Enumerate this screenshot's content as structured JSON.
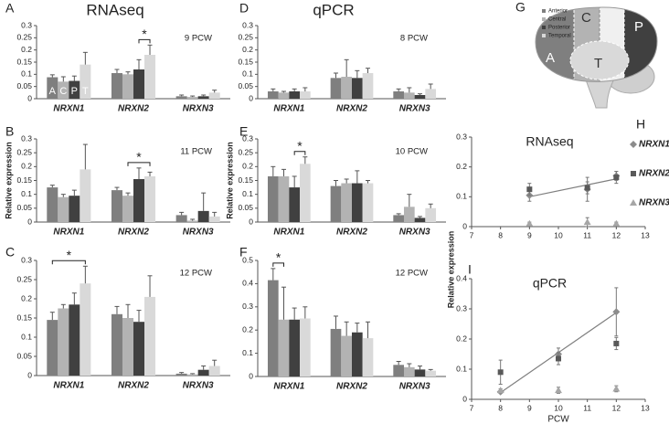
{
  "chart_data": [
    {
      "type": "bar",
      "panel": "A",
      "title": "RNAseq",
      "label": "9 PCW",
      "categories": [
        "NRXN1",
        "NRXN2",
        "NRXN3"
      ],
      "bar_labels": [
        "A",
        "C",
        "P",
        "T"
      ],
      "ylim": [
        0,
        0.3
      ],
      "yticks": [
        0,
        0.05,
        0.1,
        0.15,
        0.2,
        0.25,
        0.3
      ],
      "series": [
        {
          "color": "#7f7f7f",
          "values": [
            0.088,
            0.105,
            0.01
          ],
          "errors": [
            0.01,
            0.015,
            0.005
          ]
        },
        {
          "color": "#b3b3b3",
          "values": [
            0.07,
            0.1,
            0.007
          ],
          "errors": [
            0.02,
            0.01,
            0.004
          ]
        },
        {
          "color": "#404040",
          "values": [
            0.073,
            0.12,
            0.01
          ],
          "errors": [
            0.02,
            0.04,
            0.005
          ]
        },
        {
          "color": "#d9d9d9",
          "values": [
            0.14,
            0.18,
            0.025
          ],
          "errors": [
            0.05,
            0.04,
            0.01
          ]
        }
      ],
      "significance": {
        "label": "*",
        "category": "NRXN2",
        "between": [
          "Posterior",
          "Temporal"
        ]
      }
    },
    {
      "type": "bar",
      "panel": "B",
      "label": "11 PCW",
      "ylabel": "Relative expression",
      "categories": [
        "NRXN1",
        "NRXN2",
        "NRXN3"
      ],
      "ylim": [
        0,
        0.3
      ],
      "yticks": [
        0,
        0.05,
        0.1,
        0.15,
        0.2,
        0.25,
        0.3
      ],
      "series": [
        {
          "color": "#7f7f7f",
          "values": [
            0.125,
            0.115,
            0.025
          ],
          "errors": [
            0.008,
            0.01,
            0.01
          ]
        },
        {
          "color": "#b3b3b3",
          "values": [
            0.09,
            0.095,
            0.005
          ],
          "errors": [
            0.01,
            0.01,
            0.005
          ]
        },
        {
          "color": "#404040",
          "values": [
            0.095,
            0.155,
            0.04
          ],
          "errors": [
            0.02,
            0.04,
            0.065
          ]
        },
        {
          "color": "#d9d9d9",
          "values": [
            0.19,
            0.165,
            0.02
          ],
          "errors": [
            0.09,
            0.015,
            0.015
          ]
        }
      ],
      "significance": {
        "label": "*",
        "category": "NRXN2",
        "between": [
          "Central",
          "Temporal"
        ]
      }
    },
    {
      "type": "bar",
      "panel": "C",
      "label": "12 PCW",
      "categories": [
        "NRXN1",
        "NRXN2",
        "NRXN3"
      ],
      "ylim": [
        0,
        0.3
      ],
      "yticks": [
        0,
        0.05,
        0.1,
        0.15,
        0.2,
        0.25,
        0.3
      ],
      "series": [
        {
          "color": "#7f7f7f",
          "values": [
            0.145,
            0.16,
            0.005
          ],
          "errors": [
            0.02,
            0.02,
            0.003
          ]
        },
        {
          "color": "#b3b3b3",
          "values": [
            0.175,
            0.15,
            0.003
          ],
          "errors": [
            0.01,
            0.035,
            0.002
          ]
        },
        {
          "color": "#404040",
          "values": [
            0.185,
            0.14,
            0.015
          ],
          "errors": [
            0.03,
            0.03,
            0.01
          ]
        },
        {
          "color": "#d9d9d9",
          "values": [
            0.24,
            0.205,
            0.025
          ],
          "errors": [
            0.045,
            0.055,
            0.015
          ]
        }
      ],
      "significance": {
        "label": "*",
        "category": "NRXN1",
        "between": [
          "Anterior",
          "Temporal"
        ]
      }
    },
    {
      "type": "bar",
      "panel": "D",
      "title": "qPCR",
      "label": "8 PCW",
      "categories": [
        "NRXN1",
        "NRXN2",
        "NRXN3"
      ],
      "ylim": [
        0,
        0.3
      ],
      "yticks": [
        0,
        0.05,
        0.1,
        0.15,
        0.2,
        0.25,
        0.3
      ],
      "series": [
        {
          "color": "#7f7f7f",
          "values": [
            0.03,
            0.085,
            0.03
          ],
          "errors": [
            0.01,
            0.02,
            0.01
          ]
        },
        {
          "color": "#b3b3b3",
          "values": [
            0.025,
            0.09,
            0.025
          ],
          "errors": [
            0.005,
            0.07,
            0.02
          ]
        },
        {
          "color": "#404040",
          "values": [
            0.03,
            0.085,
            0.015
          ],
          "errors": [
            0.01,
            0.03,
            0.005
          ]
        },
        {
          "color": "#d9d9d9",
          "values": [
            0.03,
            0.105,
            0.04
          ],
          "errors": [
            0.015,
            0.02,
            0.02
          ]
        }
      ]
    },
    {
      "type": "bar",
      "panel": "E",
      "label": "10 PCW",
      "ylabel": "Relative expression",
      "categories": [
        "NRXN1",
        "NRXN2",
        "NRXN3"
      ],
      "ylim": [
        0,
        0.3
      ],
      "yticks": [
        0,
        0.05,
        0.1,
        0.15,
        0.2,
        0.25,
        0.3
      ],
      "series": [
        {
          "color": "#7f7f7f",
          "values": [
            0.165,
            0.13,
            0.025
          ],
          "errors": [
            0.035,
            0.02,
            0.005
          ]
        },
        {
          "color": "#b3b3b3",
          "values": [
            0.165,
            0.14,
            0.055
          ],
          "errors": [
            0.025,
            0.015,
            0.045
          ]
        },
        {
          "color": "#404040",
          "values": [
            0.125,
            0.14,
            0.015
          ],
          "errors": [
            0.04,
            0.045,
            0.005
          ]
        },
        {
          "color": "#d9d9d9",
          "values": [
            0.21,
            0.14,
            0.05
          ],
          "errors": [
            0.025,
            0.01,
            0.015
          ]
        }
      ],
      "significance": {
        "label": "*",
        "category": "NRXN1",
        "between": [
          "Posterior",
          "Temporal"
        ]
      }
    },
    {
      "type": "bar",
      "panel": "F",
      "label": "12 PCW",
      "categories": [
        "NRXN1",
        "NRXN2",
        "NRXN3"
      ],
      "ylim": [
        0,
        0.5
      ],
      "yticks": [
        0,
        0.1,
        0.2,
        0.3,
        0.4,
        0.5
      ],
      "series": [
        {
          "color": "#7f7f7f",
          "values": [
            0.415,
            0.205,
            0.05
          ],
          "errors": [
            0.05,
            0.055,
            0.015
          ]
        },
        {
          "color": "#b3b3b3",
          "values": [
            0.245,
            0.175,
            0.04
          ],
          "errors": [
            0.14,
            0.06,
            0.015
          ]
        },
        {
          "color": "#404040",
          "values": [
            0.245,
            0.19,
            0.03
          ],
          "errors": [
            0.05,
            0.04,
            0.015
          ]
        },
        {
          "color": "#d9d9d9",
          "values": [
            0.25,
            0.165,
            0.025
          ],
          "errors": [
            0.05,
            0.07,
            0.005
          ]
        }
      ],
      "significance": {
        "label": "*",
        "category": "NRXN1",
        "between": [
          "Anterior",
          "Central"
        ]
      }
    },
    {
      "type": "scatter",
      "panel": "H",
      "title": "RNAseq",
      "x": [
        9,
        11,
        12
      ],
      "xlim": [
        7,
        13
      ],
      "xticks": [
        7,
        8,
        9,
        10,
        11,
        12,
        13
      ],
      "ylim": [
        0,
        0.3
      ],
      "yticks": [
        0,
        0.1,
        0.2,
        0.3
      ],
      "trendline": true,
      "series": [
        {
          "name": "NRXN1",
          "marker": "diamond",
          "color": "#8c8c8c",
          "values": [
            0.105,
            0.125,
            0.17
          ],
          "errors": [
            0.02,
            0.04,
            0.015
          ]
        },
        {
          "name": "NRXN2",
          "marker": "square",
          "color": "#595959",
          "values": [
            0.125,
            0.13,
            0.165
          ],
          "errors": [
            0.02,
            0.02,
            0.02
          ]
        },
        {
          "name": "NRXN3",
          "marker": "triangle",
          "color": "#a6a6a6",
          "values": [
            0.01,
            0.015,
            0.01
          ],
          "errors": [
            0.005,
            0.015,
            0.005
          ]
        }
      ]
    },
    {
      "type": "scatter",
      "panel": "I",
      "title": "qPCR",
      "xlabel": "PCW",
      "ylabel": "Relative expression",
      "x": [
        8,
        10,
        12
      ],
      "xlim": [
        7,
        13
      ],
      "xticks": [
        7,
        8,
        9,
        10,
        11,
        12,
        13
      ],
      "ylim": [
        0,
        0.4
      ],
      "yticks": [
        0,
        0.1,
        0.2,
        0.3,
        0.4
      ],
      "trendline": true,
      "series": [
        {
          "marker": "diamond",
          "color": "#8c8c8c",
          "values": [
            0.025,
            0.15,
            0.29
          ],
          "errors": [
            0.005,
            0.02,
            0.08
          ]
        },
        {
          "marker": "square",
          "color": "#595959",
          "values": [
            0.09,
            0.135,
            0.185
          ],
          "errors": [
            0.04,
            0.02,
            0.02
          ]
        },
        {
          "marker": "triangle",
          "color": "#a6a6a6",
          "values": [
            0.03,
            0.03,
            0.035
          ],
          "errors": [
            0.005,
            0.01,
            0.01
          ]
        }
      ]
    }
  ],
  "diagram": {
    "panel": "G",
    "legend": [
      "Anterior",
      "Central",
      "Posterior",
      "Temporal"
    ],
    "regions": [
      "A",
      "C",
      "P",
      "T"
    ]
  }
}
